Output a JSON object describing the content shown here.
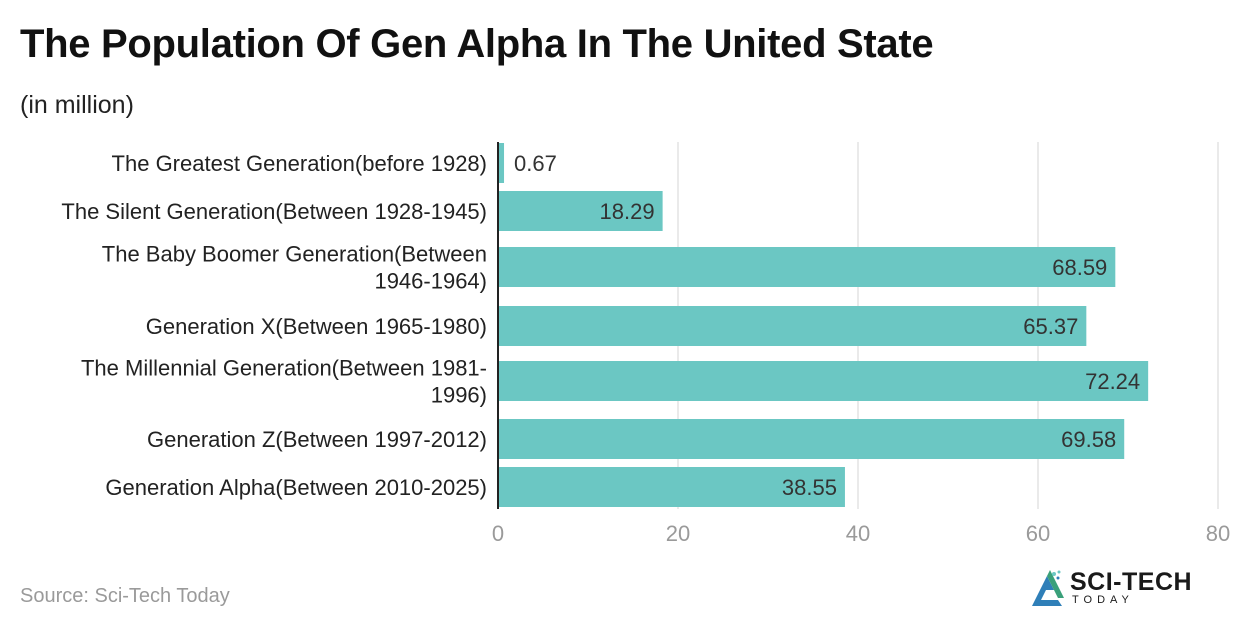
{
  "header": {
    "title": "The Population Of Gen Alpha In The United State",
    "subtitle": "(in million)"
  },
  "footer": {
    "source": "Source: Sci-Tech Today",
    "logo_name": "SCI-TECH",
    "logo_sub": "TODAY"
  },
  "colors": {
    "bar": "#6bc7c3",
    "grid": "#e3e3e3",
    "axis": "#222222",
    "tick_label": "#9a9a9a",
    "category_label": "#222222",
    "value_label": "#333333"
  },
  "chart_data": {
    "type": "bar",
    "orientation": "horizontal",
    "title": "The Population Of Gen Alpha In The United State",
    "subtitle": "(in million)",
    "categories": [
      [
        "The Greatest Generation(before 1928)"
      ],
      [
        "The Silent Generation(Between 1928-1945)"
      ],
      [
        "The Baby Boomer Generation(Between",
        "1946-1964)"
      ],
      [
        "Generation X(Between 1965-1980)"
      ],
      [
        "The Millennial Generation(Between 1981-",
        "1996)"
      ],
      [
        "Generation Z(Between 1997-2012)"
      ],
      [
        "Generation Alpha(Between 2010-2025)"
      ]
    ],
    "values": [
      0.67,
      18.29,
      68.59,
      65.37,
      72.24,
      69.58,
      38.55
    ],
    "value_labels": [
      "0.67",
      "18.29",
      "68.59",
      "65.37",
      "72.24",
      "69.58",
      "38.55"
    ],
    "xlim": [
      0,
      80
    ],
    "xticks": [
      0,
      20,
      40,
      60,
      80
    ],
    "xtick_labels": [
      "0",
      "20",
      "40",
      "60",
      "80"
    ],
    "xlabel": "",
    "ylabel": "",
    "grid": true
  }
}
